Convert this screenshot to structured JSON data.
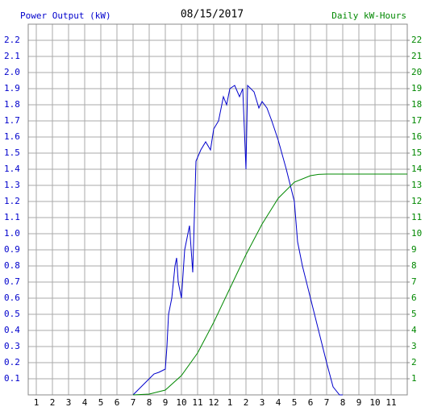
{
  "chart_data": {
    "type": "line",
    "title": "08/15/2017",
    "y_label": "Power Output (kW)",
    "y2_label": "Daily kW-Hours",
    "xlim": [
      0.5,
      24
    ],
    "xticks": [
      1,
      2,
      3,
      4,
      5,
      6,
      7,
      8,
      9,
      10,
      11,
      12,
      {
        "value": 13,
        "label": "1"
      },
      {
        "value": 14,
        "label": "2"
      },
      {
        "value": 15,
        "label": "3"
      },
      {
        "value": 16,
        "label": "4"
      },
      {
        "value": 17,
        "label": "5"
      },
      {
        "value": 18,
        "label": "6"
      },
      {
        "value": 19,
        "label": "7"
      },
      {
        "value": 20,
        "label": "8"
      },
      {
        "value": 21,
        "label": "9"
      },
      {
        "value": 22,
        "label": "10"
      },
      {
        "value": 23,
        "label": "11"
      }
    ],
    "ylim": [
      0,
      2.3
    ],
    "yticks": [
      0.1,
      0.2,
      0.3,
      0.4,
      0.5,
      0.6,
      0.7,
      0.8,
      0.9,
      {
        "value": 1,
        "label": "1.0"
      },
      1.1,
      1.2,
      1.3,
      1.4,
      1.5,
      1.6,
      1.7,
      1.8,
      1.9,
      {
        "value": 2,
        "label": "2.0"
      },
      2.1,
      2.2
    ],
    "y2lim": [
      0,
      23
    ],
    "y2ticks": [
      1,
      2,
      3,
      4,
      5,
      6,
      7,
      8,
      9,
      10,
      11,
      12,
      13,
      14,
      15,
      16,
      17,
      18,
      19,
      20,
      21,
      22
    ],
    "grid": true,
    "series": [
      {
        "name": "Power Output (kW)",
        "color": "#0000cc",
        "x": [
          7,
          7.5,
          8,
          8.3,
          8.6,
          9,
          9.1,
          9.2,
          9.4,
          9.6,
          9.7,
          9.8,
          10,
          10.2,
          10.5,
          10.7,
          10.9,
          11.2,
          11.5,
          11.8,
          12,
          12.3,
          12.6,
          12.8,
          13,
          13.3,
          13.6,
          13.8,
          14,
          14.1,
          14.5,
          14.8,
          15,
          15.3,
          15.6,
          16,
          16.5,
          17,
          17.2,
          17.5,
          18,
          18.5,
          19,
          19.4,
          19.8,
          20
        ],
        "values": [
          0,
          0.05,
          0.1,
          0.13,
          0.14,
          0.16,
          0.3,
          0.5,
          0.6,
          0.8,
          0.85,
          0.7,
          0.6,
          0.9,
          1.05,
          0.76,
          1.45,
          1.52,
          1.57,
          1.52,
          1.65,
          1.7,
          1.85,
          1.8,
          1.9,
          1.92,
          1.85,
          1.9,
          1.4,
          1.92,
          1.88,
          1.78,
          1.82,
          1.78,
          1.7,
          1.58,
          1.4,
          1.2,
          0.95,
          0.8,
          0.6,
          0.4,
          0.2,
          0.05,
          0,
          0
        ]
      },
      {
        "name": "Daily kW-Hours",
        "color": "#008800",
        "axis": "y2",
        "x": [
          7,
          8,
          9,
          10,
          11,
          12,
          13,
          14,
          15,
          16,
          17,
          18,
          18.5,
          19,
          24
        ],
        "values": [
          0,
          0.05,
          0.3,
          1.2,
          2.6,
          4.5,
          6.6,
          8.7,
          10.6,
          12.2,
          13.2,
          13.6,
          13.68,
          13.7,
          13.7
        ]
      }
    ]
  }
}
